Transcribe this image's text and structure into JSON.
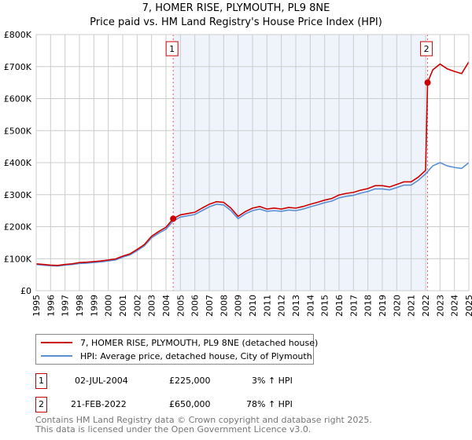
{
  "title": "7, HOMER RISE, PLYMOUTH, PL9 8NE",
  "subtitle": "Price paid vs. HM Land Registry's House Price Index (HPI)",
  "chart_data": {
    "type": "line",
    "xlim": [
      1995,
      2025
    ],
    "ylim": [
      0,
      800000
    ],
    "yticks": [
      {
        "v": 0,
        "label": "£0"
      },
      {
        "v": 100000,
        "label": "£100K"
      },
      {
        "v": 200000,
        "label": "£200K"
      },
      {
        "v": 300000,
        "label": "£300K"
      },
      {
        "v": 400000,
        "label": "£400K"
      },
      {
        "v": 500000,
        "label": "£500K"
      },
      {
        "v": 600000,
        "label": "£600K"
      },
      {
        "v": 700000,
        "label": "£700K"
      },
      {
        "v": 800000,
        "label": "£800K"
      }
    ],
    "xticks": [
      "1995",
      "1996",
      "1997",
      "1998",
      "1999",
      "2000",
      "2001",
      "2002",
      "2003",
      "2004",
      "2005",
      "2006",
      "2007",
      "2008",
      "2009",
      "2010",
      "2011",
      "2012",
      "2013",
      "2014",
      "2015",
      "2016",
      "2017",
      "2018",
      "2019",
      "2020",
      "2021",
      "2022",
      "2023",
      "2024",
      "2025"
    ],
    "grid": true,
    "series": [
      {
        "name": "7, HOMER RISE, PLYMOUTH, PL9 8NE (detached house)",
        "color": "#cc0000",
        "x": [
          1995,
          1995.5,
          1996,
          1996.5,
          1997,
          1997.5,
          1998,
          1998.5,
          1999,
          1999.5,
          2000,
          2000.5,
          2001,
          2001.5,
          2002,
          2002.5,
          2003,
          2003.5,
          2004,
          2004.5,
          2005,
          2005.5,
          2006,
          2006.5,
          2007,
          2007.5,
          2008,
          2008.5,
          2009,
          2009.5,
          2010,
          2010.5,
          2011,
          2011.5,
          2012,
          2012.5,
          2013,
          2013.5,
          2014,
          2014.5,
          2015,
          2015.5,
          2016,
          2016.5,
          2017,
          2017.5,
          2018,
          2018.5,
          2019,
          2019.5,
          2020,
          2020.5,
          2021,
          2021.5,
          2022,
          2022.14,
          2022.5,
          2023,
          2023.5,
          2024,
          2024.5,
          2025
        ],
        "y": [
          84000,
          82000,
          80000,
          79000,
          82000,
          84000,
          88000,
          89000,
          91000,
          93000,
          96000,
          99000,
          108000,
          115000,
          129000,
          144000,
          170000,
          185000,
          198000,
          225000,
          237000,
          241000,
          245000,
          258000,
          270000,
          278000,
          276000,
          258000,
          232000,
          247000,
          258000,
          263000,
          255000,
          258000,
          255000,
          260000,
          258000,
          263000,
          270000,
          276000,
          283000,
          288000,
          299000,
          304000,
          307000,
          314000,
          319000,
          328000,
          328000,
          324000,
          332000,
          340000,
          340000,
          355000,
          376000,
          650000,
          690000,
          708000,
          693000,
          685000,
          678000,
          715000
        ]
      },
      {
        "name": "HPI: Average price, detached house, City of Plymouth",
        "color": "#5b8fd4",
        "x": [
          1995,
          1995.5,
          1996,
          1996.5,
          1997,
          1997.5,
          1998,
          1998.5,
          1999,
          1999.5,
          2000,
          2000.5,
          2001,
          2001.5,
          2002,
          2002.5,
          2003,
          2003.5,
          2004,
          2004.5,
          2005,
          2005.5,
          2006,
          2006.5,
          2007,
          2007.5,
          2008,
          2008.5,
          2009,
          2009.5,
          2010,
          2010.5,
          2011,
          2011.5,
          2012,
          2012.5,
          2013,
          2013.5,
          2014,
          2014.5,
          2015,
          2015.5,
          2016,
          2016.5,
          2017,
          2017.5,
          2018,
          2018.5,
          2019,
          2019.5,
          2020,
          2020.5,
          2021,
          2021.5,
          2022,
          2022.5,
          2023,
          2023.5,
          2024,
          2024.5,
          2025
        ],
        "y": [
          82000,
          80000,
          78000,
          77000,
          80000,
          82000,
          85000,
          86000,
          88000,
          90000,
          93000,
          96000,
          105000,
          112000,
          125000,
          140000,
          165000,
          180000,
          192000,
          218000,
          230000,
          234000,
          238000,
          250000,
          262000,
          270000,
          268000,
          250000,
          225000,
          240000,
          250000,
          255000,
          248000,
          250000,
          248000,
          252000,
          250000,
          255000,
          262000,
          268000,
          275000,
          280000,
          290000,
          295000,
          298000,
          305000,
          310000,
          318000,
          318000,
          315000,
          322000,
          330000,
          330000,
          345000,
          365000,
          390000,
          400000,
          390000,
          385000,
          382000,
          400000
        ]
      }
    ],
    "sales": [
      {
        "id": "1",
        "x": 2004.5,
        "y": 225000
      },
      {
        "id": "2",
        "x": 2022.14,
        "y": 650000
      }
    ]
  },
  "legend": [
    "7, HOMER RISE, PLYMOUTH, PL9 8NE (detached house)",
    "HPI: Average price, detached house, City of Plymouth"
  ],
  "transactions": [
    {
      "id": "1",
      "date": "02-JUL-2004",
      "price": "£225,000",
      "hpi": "3% ↑ HPI"
    },
    {
      "id": "2",
      "date": "21-FEB-2022",
      "price": "£650,000",
      "hpi": "78% ↑ HPI"
    }
  ],
  "footer": [
    "Contains HM Land Registry data © Crown copyright and database right 2025.",
    "This data is licensed under the Open Government Licence v3.0."
  ]
}
